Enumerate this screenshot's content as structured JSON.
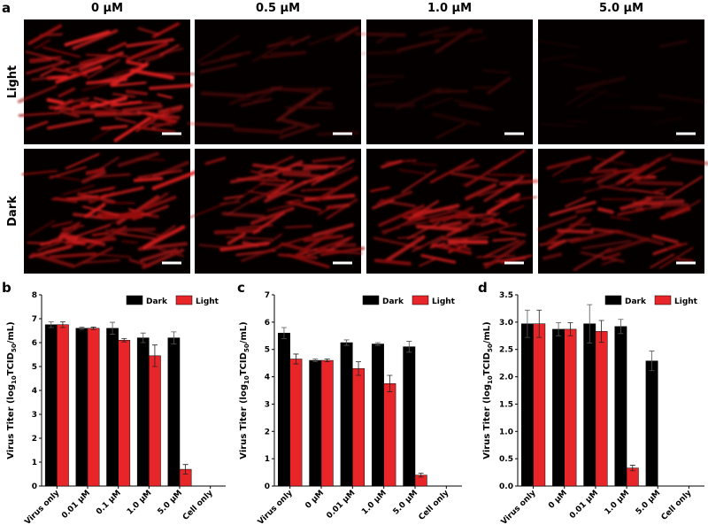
{
  "panel_labels": [
    "a",
    "b",
    "c",
    "d"
  ],
  "microscopy": {
    "columns": [
      "0 μM",
      "0.5 μM",
      "1.0 μM",
      "5.0 μM"
    ],
    "rows": [
      "Light",
      "Dark"
    ]
  },
  "chart_data": [
    {
      "type": "bar",
      "ylabel": [
        "Virus Titer (log",
        "10",
        "TCID",
        "50",
        "/mL)"
      ],
      "categories": [
        "Virus only",
        "0.01 μM",
        "0.1 μM",
        "1.0 μM",
        "5.0 μM",
        "Cell only"
      ],
      "series": [
        {
          "name": "Dark",
          "color": "#000000",
          "values": [
            6.75,
            6.6,
            6.6,
            6.2,
            6.2,
            null
          ],
          "errors": [
            0.12,
            0.05,
            0.25,
            0.2,
            0.25,
            null
          ]
        },
        {
          "name": "Light",
          "color": "#e8262a",
          "values": [
            6.75,
            6.6,
            6.1,
            5.45,
            0.7,
            null
          ],
          "errors": [
            0.12,
            0.05,
            0.07,
            0.45,
            0.2,
            null
          ]
        }
      ],
      "ylim": [
        0,
        8
      ],
      "yticks": [
        0,
        1,
        2,
        3,
        4,
        5,
        6,
        7,
        8
      ]
    },
    {
      "type": "bar",
      "ylabel": [
        "Virus Titer (log",
        "10",
        "TCID",
        "50",
        "/mL)"
      ],
      "categories": [
        "Virus only",
        "0 μM",
        "0.01 μM",
        "1.0 μM",
        "5.0 μM",
        "Cell only"
      ],
      "series": [
        {
          "name": "Dark",
          "color": "#000000",
          "values": [
            5.6,
            4.6,
            5.25,
            5.2,
            5.1,
            null
          ],
          "errors": [
            0.2,
            0.05,
            0.1,
            0.05,
            0.2,
            null
          ]
        },
        {
          "name": "Light",
          "color": "#e8262a",
          "values": [
            4.65,
            4.6,
            4.3,
            3.75,
            0.4,
            null
          ],
          "errors": [
            0.18,
            0.05,
            0.25,
            0.3,
            0.07,
            null
          ]
        }
      ],
      "ylim": [
        0,
        7
      ],
      "yticks": [
        0,
        1,
        2,
        3,
        4,
        5,
        6,
        7
      ]
    },
    {
      "type": "bar",
      "ylabel": [
        "Virus Titer (log",
        "10",
        "TCID",
        "50",
        "/mL)"
      ],
      "categories": [
        "Virus only",
        "0 μM",
        "0.01 μM",
        "1.0 μM",
        "5.0 μM",
        "Cell only"
      ],
      "series": [
        {
          "name": "Dark",
          "color": "#000000",
          "values": [
            2.97,
            2.87,
            2.97,
            2.92,
            2.29,
            null
          ],
          "errors": [
            0.25,
            0.12,
            0.35,
            0.13,
            0.18,
            null
          ]
        },
        {
          "name": "Light",
          "color": "#e8262a",
          "values": [
            2.97,
            2.87,
            2.83,
            0.33,
            null,
            null
          ],
          "errors": [
            0.25,
            0.12,
            0.2,
            0.05,
            null,
            null
          ]
        }
      ],
      "ylim": [
        0,
        3.5
      ],
      "yticks": [
        {
          "value": 0,
          "label": "0.0"
        },
        {
          "value": 0.5,
          "label": "0.5"
        },
        {
          "value": 1,
          "label": "1.0"
        },
        {
          "value": 1.5,
          "label": "1.5"
        },
        {
          "value": 2,
          "label": "2.0"
        },
        {
          "value": 2.5,
          "label": "2.5"
        },
        {
          "value": 3,
          "label": "3.0"
        },
        {
          "value": 3.5,
          "label": "3.5"
        }
      ]
    }
  ]
}
